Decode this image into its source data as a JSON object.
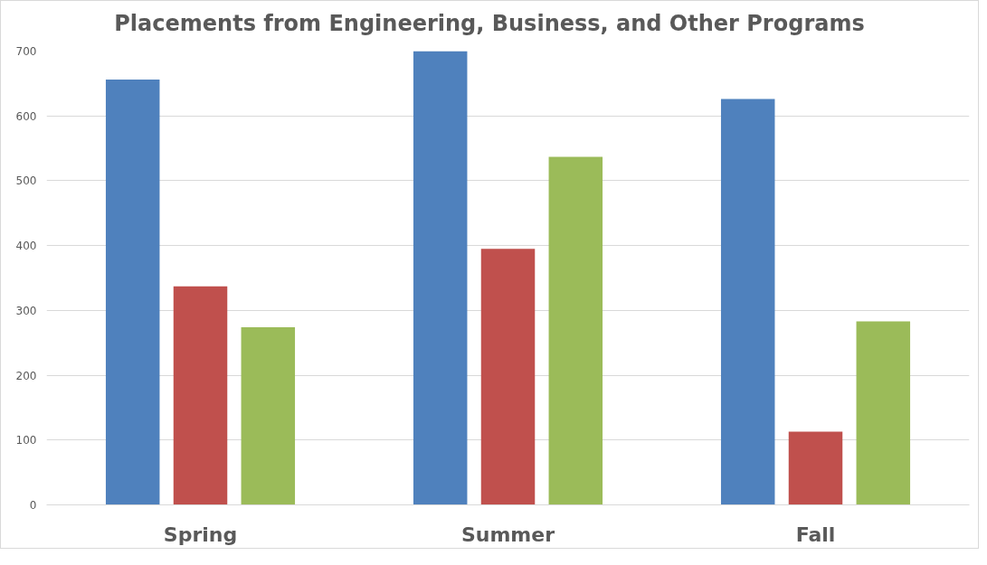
{
  "chart_data": {
    "type": "bar",
    "title": "Placements from Engineering, Business, and Other Programs",
    "categories": [
      "Spring",
      "Summer",
      "Fall"
    ],
    "series": [
      {
        "color": "#4f81bd",
        "values": [
          656,
          700,
          626
        ]
      },
      {
        "color": "#c0504d",
        "values": [
          337,
          395,
          113
        ]
      },
      {
        "color": "#9bbb59",
        "values": [
          274,
          537,
          283
        ]
      }
    ],
    "ylim": [
      0,
      700
    ],
    "yticks": [
      0,
      100,
      200,
      300,
      400,
      500,
      600,
      700
    ],
    "grid": "y"
  }
}
